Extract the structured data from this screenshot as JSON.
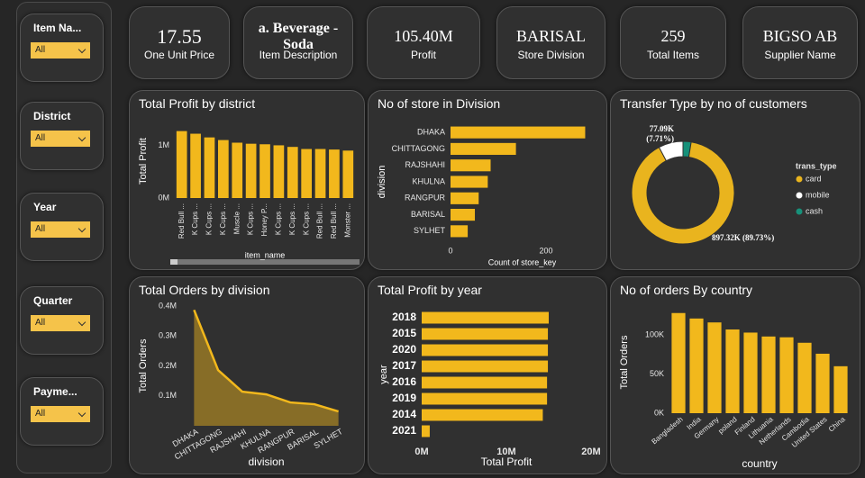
{
  "slicers": [
    {
      "label": "Item Na...",
      "value": "All"
    },
    {
      "label": "District",
      "value": "All"
    },
    {
      "label": "Year",
      "value": "All"
    },
    {
      "label": "Quarter",
      "value": "All"
    },
    {
      "label": "Payme...",
      "value": "All"
    }
  ],
  "cards": [
    {
      "value": 17.55,
      "label": "One Unit Price"
    },
    {
      "value": "a. Beverage - Soda",
      "label": "Item Description"
    },
    {
      "value": "105.40M",
      "label": "Profit"
    },
    {
      "value": "BARISAL",
      "label": "Store Division"
    },
    {
      "value": 259,
      "label": "Total Items"
    },
    {
      "value": "BIGSO AB",
      "label": "Supplier Name"
    }
  ],
  "chart_data": [
    {
      "type": "bar",
      "title": "Total Profit by district",
      "x_label": "item_name",
      "y_label": "Total Profit",
      "categories": [
        "Red Bull ...",
        "K Cups ...",
        "K Cups ...",
        "K Cups ...",
        "Muscle ...",
        "K Cups ...",
        "Honey P...",
        "K Cups ...",
        "K Cups ...",
        "K Cups ...",
        "Red Bull ...",
        "Red Bull ...",
        "Monster ..."
      ],
      "values": [
        1270000,
        1220000,
        1150000,
        1100000,
        1050000,
        1030000,
        1020000,
        1000000,
        970000,
        930000,
        930000,
        920000,
        900000
      ],
      "color": "#f2b81c",
      "ylim": [
        0,
        1400000
      ],
      "yticks": [
        {
          "value": 0,
          "label": "0M"
        },
        {
          "value": 1000000,
          "label": "1M"
        }
      ]
    },
    {
      "type": "barh",
      "title": "No of store in Division",
      "x_label": "Count of store_key",
      "y_label": "division",
      "categories": [
        "DHAKA",
        "CHITTAGONG",
        "RAJSHAHI",
        "KHULNA",
        "RANGPUR",
        "BARISAL",
        "SYLHET"
      ],
      "values": [
        282,
        137,
        84,
        78,
        59,
        51,
        36
      ],
      "color": "#f2b81c",
      "xlim": [
        0,
        300
      ],
      "xticks": [
        0,
        200
      ]
    },
    {
      "type": "pie",
      "title": "Transfer Type by no of customers",
      "legend_title": "trans_type",
      "donut": true,
      "categories": [
        "card",
        "mobile",
        "cash"
      ],
      "values": [
        897320,
        77090,
        25590
      ],
      "value_labels": [
        "897.32K (89.73%)",
        "77.09K (7.71%)",
        null
      ],
      "colors": [
        "#e9b41e",
        "#ffffff",
        "#17917a"
      ]
    },
    {
      "type": "area",
      "title": "Total Orders by division",
      "x_label": "division",
      "y_label": "Total Orders",
      "categories": [
        "DHAKA",
        "CHITTAGONG",
        "RAJSHAHI",
        "KHULNA",
        "RANGPUR",
        "BARISAL",
        "SYLHET"
      ],
      "values": [
        387000,
        186000,
        114000,
        105000,
        78000,
        72000,
        48000
      ],
      "color": "#f2b81c",
      "ylim": [
        0,
        400000
      ],
      "yticks": [
        {
          "value": 100000,
          "label": "0.1M"
        },
        {
          "value": 200000,
          "label": "0.2M"
        },
        {
          "value": 300000,
          "label": "0.3M"
        },
        {
          "value": 400000,
          "label": "0.4M"
        }
      ]
    },
    {
      "type": "barh",
      "title": "Total Profit by year",
      "x_label": "Total Profit",
      "y_label": "year",
      "categories": [
        "2018",
        "2015",
        "2020",
        "2017",
        "2016",
        "2019",
        "2014",
        "2021"
      ],
      "values": [
        15000000,
        14900000,
        14900000,
        14900000,
        14800000,
        14800000,
        14300000,
        950000
      ],
      "color": "#f2b81c",
      "xlim": [
        0,
        20000000
      ],
      "xticks": [
        {
          "value": 0,
          "label": "0M"
        },
        {
          "value": 10000000,
          "label": "10M"
        },
        {
          "value": 20000000,
          "label": "20M"
        }
      ]
    },
    {
      "type": "bar",
      "title": "No of orders By country",
      "x_label": "country",
      "y_label": "Total Orders",
      "categories": [
        "Bangladesh",
        "India",
        "Germany",
        "poland",
        "Finland",
        "Lithuania",
        "Netherlands",
        "Cambodia",
        "United States",
        "China"
      ],
      "values": [
        128000,
        121000,
        116000,
        107000,
        103000,
        98000,
        97000,
        90000,
        76000,
        60000
      ],
      "color": "#f2b81c",
      "ylim": [
        0,
        130000
      ],
      "yticks": [
        {
          "value": 0,
          "label": "0K"
        },
        {
          "value": 50000,
          "label": "50K"
        },
        {
          "value": 100000,
          "label": "100K"
        }
      ]
    }
  ]
}
